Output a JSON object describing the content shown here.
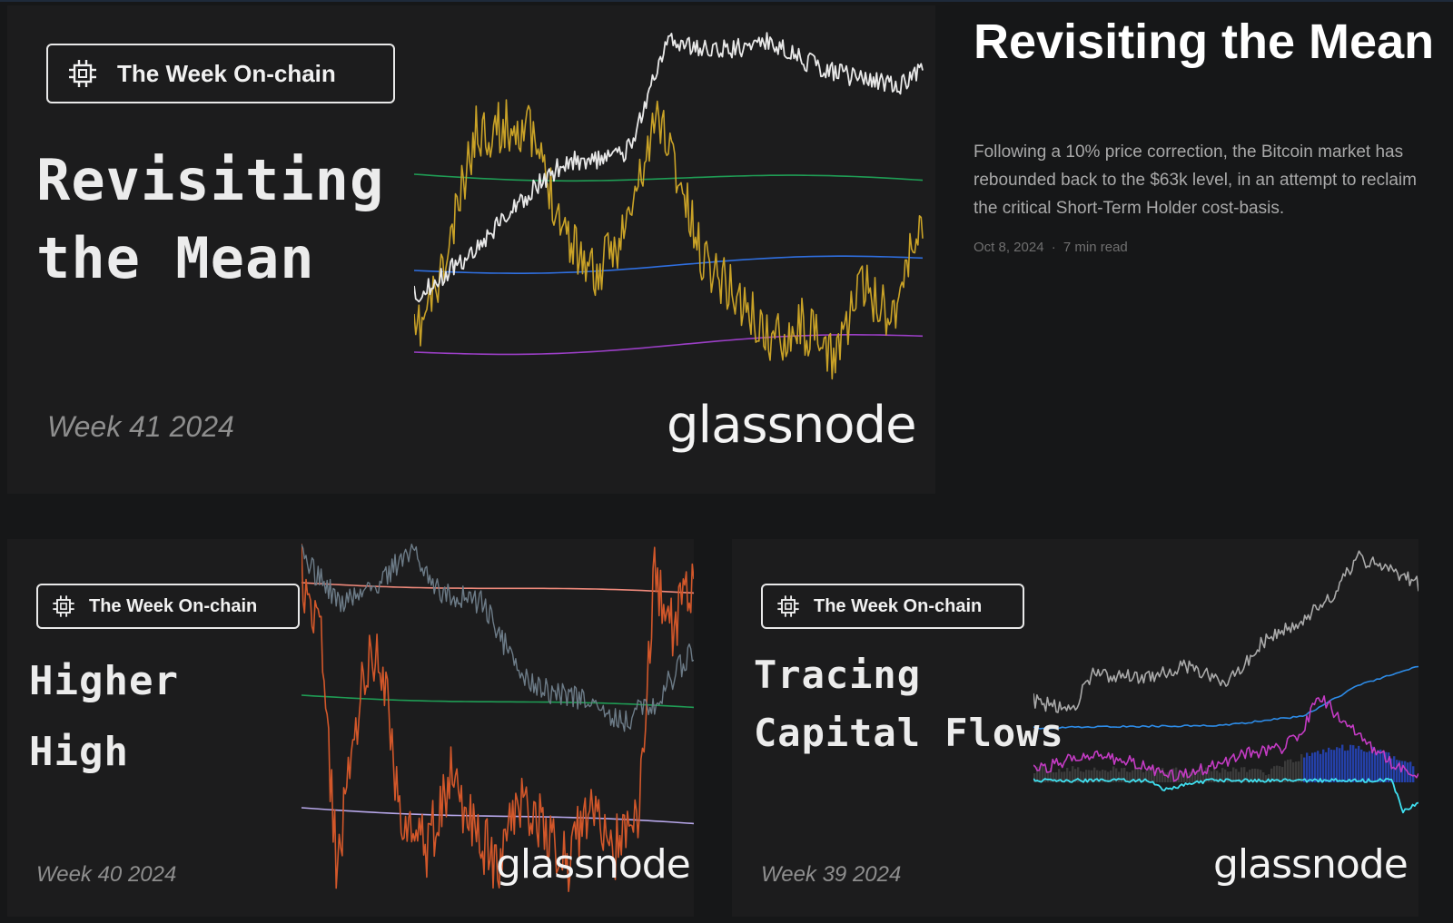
{
  "featured": {
    "badge": "The Week On-chain",
    "title_line1": "Revisiting",
    "title_line2": "the Mean",
    "week": "Week 41 2024",
    "logo": "glassnode",
    "article_title": "Revisiting the Mean",
    "excerpt": "Following a 10% price correction, the Bitcoin market has rebounded back to the $63k level, in an attempt to reclaim the critical Short-Term Holder cost-basis.",
    "date": "Oct 8, 2024",
    "separator": "·",
    "read_time": "7 min read"
  },
  "cards": [
    {
      "badge": "The Week On-chain",
      "title_line1": "Higher",
      "title_line2": "High",
      "week": "Week 40 2024",
      "logo": "glassnode"
    },
    {
      "badge": "The Week On-chain",
      "title_line1": "Tracing",
      "title_line2": "Capital Flows",
      "week": "Week 39 2024",
      "logo": "glassnode"
    }
  ],
  "colors": {
    "price_white": "#e8e8e8",
    "gold": "#c9a227",
    "green": "#1f9d55",
    "blue": "#2f6fe0",
    "purple": "#9b3fc6",
    "orange": "#d2572a",
    "slate": "#6c7b87",
    "salmon": "#f08a7c",
    "lavender": "#b7a7ea",
    "magenta": "#c43bc4",
    "cyan": "#3fe0f0",
    "sky": "#2d8ce8"
  },
  "icons": {
    "badge_icon": "chip-icon"
  }
}
